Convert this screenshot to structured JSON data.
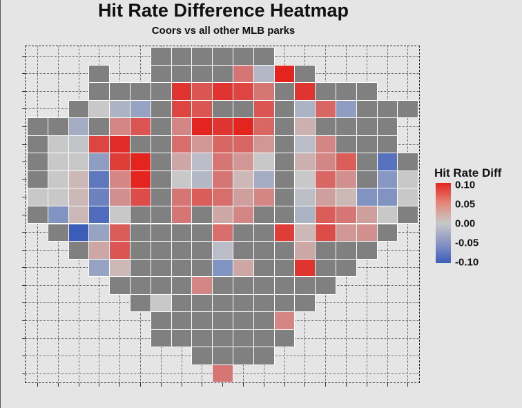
{
  "chart_data": {
    "type": "heatmap",
    "title": "Hit Rate Difference Heatmap",
    "subtitle": "Coors vs all other MLB parks",
    "xlabel": "",
    "ylabel": "",
    "legend": {
      "title": "Hit Rate Diff",
      "position": "right",
      "ticks": [
        "0.10",
        "0.05",
        "0.00",
        "-0.05",
        "-0.10"
      ],
      "range": [
        -0.1,
        0.1
      ]
    },
    "colors": {
      "low": "#3a5dba",
      "mid": "#c8c8c8",
      "high": "#e3241f",
      "na": "#808080",
      "background": "#e5e5e5"
    },
    "grid": true,
    "note": "rows top to bottom, columns left to right; NA = gray no-difference/na cell, null = empty",
    "values": [
      [
        null,
        null,
        null,
        null,
        null,
        null,
        "NA",
        "NA",
        "NA",
        "NA",
        "NA",
        "NA",
        null,
        null,
        null,
        null,
        null,
        null,
        null
      ],
      [
        null,
        null,
        null,
        "NA",
        null,
        null,
        "NA",
        "NA",
        "NA",
        "NA",
        0.05,
        -0.015,
        0.1,
        "NA",
        null,
        null,
        null,
        null,
        null
      ],
      [
        null,
        null,
        null,
        "NA",
        "NA",
        "NA",
        "NA",
        0.09,
        0.07,
        0.09,
        0.08,
        0.05,
        "NA",
        0.09,
        "NA",
        "NA",
        "NA",
        null,
        null
      ],
      [
        null,
        null,
        "NA",
        0.0,
        -0.02,
        -0.035,
        "NA",
        0.08,
        0.07,
        "NA",
        "NA",
        0.07,
        "NA",
        -0.02,
        0.06,
        -0.04,
        "NA",
        "NA",
        "NA"
      ],
      [
        "NA",
        "NA",
        -0.025,
        "NA",
        0.04,
        0.07,
        "NA",
        0.04,
        0.1,
        0.09,
        0.1,
        0.06,
        "NA",
        0.015,
        "NA",
        "NA",
        "NA",
        "NA",
        null
      ],
      [
        "NA",
        0.0,
        -0.005,
        0.08,
        0.095,
        "NA",
        "NA",
        0.055,
        0.03,
        0.06,
        0.06,
        0.03,
        "NA",
        -0.01,
        0.04,
        "NA",
        "NA",
        "NA",
        null
      ],
      [
        "NA",
        0.0,
        0.0,
        -0.04,
        0.085,
        0.1,
        "NA",
        0.02,
        -0.01,
        0.05,
        0.03,
        0.0,
        "NA",
        0.015,
        0.04,
        0.065,
        "NA",
        -0.08,
        "NA"
      ],
      [
        "NA",
        0.0,
        0.01,
        -0.075,
        0.04,
        0.1,
        "NA",
        0.0,
        -0.015,
        0.05,
        0.01,
        -0.025,
        "NA",
        0.0,
        0.06,
        0.035,
        "NA",
        -0.045,
        0.0
      ],
      [
        0.0,
        0.0,
        0.01,
        -0.065,
        0.035,
        0.075,
        "NA",
        0.05,
        0.065,
        0.055,
        0.025,
        0.04,
        "NA",
        -0.008,
        0.025,
        0.01,
        -0.05,
        -0.05,
        0.0
      ],
      [
        "NA",
        -0.05,
        0.01,
        -0.085,
        0.0,
        "NA",
        "NA",
        0.05,
        "NA",
        0.02,
        0.04,
        "NA",
        "NA",
        -0.02,
        0.065,
        0.05,
        0.025,
        0.0,
        "NA"
      ],
      [
        null,
        "NA",
        -0.1,
        -0.035,
        0.065,
        "NA",
        "NA",
        "NA",
        "NA",
        0.055,
        "NA",
        "NA",
        0.085,
        0.01,
        0.075,
        0.03,
        0.035,
        "NA",
        null
      ],
      [
        null,
        null,
        "NA",
        0.02,
        0.07,
        "NA",
        "NA",
        "NA",
        "NA",
        -0.01,
        "NA",
        "NA",
        "NA",
        0.02,
        "NA",
        "NA",
        "NA",
        null,
        null
      ],
      [
        null,
        null,
        null,
        -0.035,
        0.01,
        "NA",
        "NA",
        "NA",
        "NA",
        -0.05,
        0.02,
        "NA",
        "NA",
        0.09,
        "NA",
        "NA",
        null,
        null,
        null
      ],
      [
        null,
        null,
        null,
        null,
        "NA",
        "NA",
        "NA",
        "NA",
        0.04,
        "NA",
        "NA",
        "NA",
        "NA",
        "NA",
        "NA",
        null,
        null,
        null,
        null
      ],
      [
        null,
        null,
        null,
        null,
        null,
        "NA",
        0.0,
        "NA",
        "NA",
        "NA",
        "NA",
        "NA",
        "NA",
        "NA",
        null,
        null,
        null,
        null,
        null
      ],
      [
        null,
        null,
        null,
        null,
        null,
        null,
        "NA",
        "NA",
        "NA",
        "NA",
        "NA",
        "NA",
        0.04,
        null,
        null,
        null,
        null,
        null,
        null
      ],
      [
        null,
        null,
        null,
        null,
        null,
        null,
        "NA",
        "NA",
        "NA",
        "NA",
        "NA",
        "NA",
        "NA",
        null,
        null,
        null,
        null,
        null,
        null
      ],
      [
        null,
        null,
        null,
        null,
        null,
        null,
        null,
        null,
        "NA",
        "NA",
        "NA",
        "NA",
        null,
        null,
        null,
        null,
        null,
        null,
        null
      ],
      [
        null,
        null,
        null,
        null,
        null,
        null,
        null,
        null,
        null,
        0.05,
        null,
        null,
        null,
        null,
        null,
        null,
        null,
        null,
        null
      ]
    ]
  }
}
